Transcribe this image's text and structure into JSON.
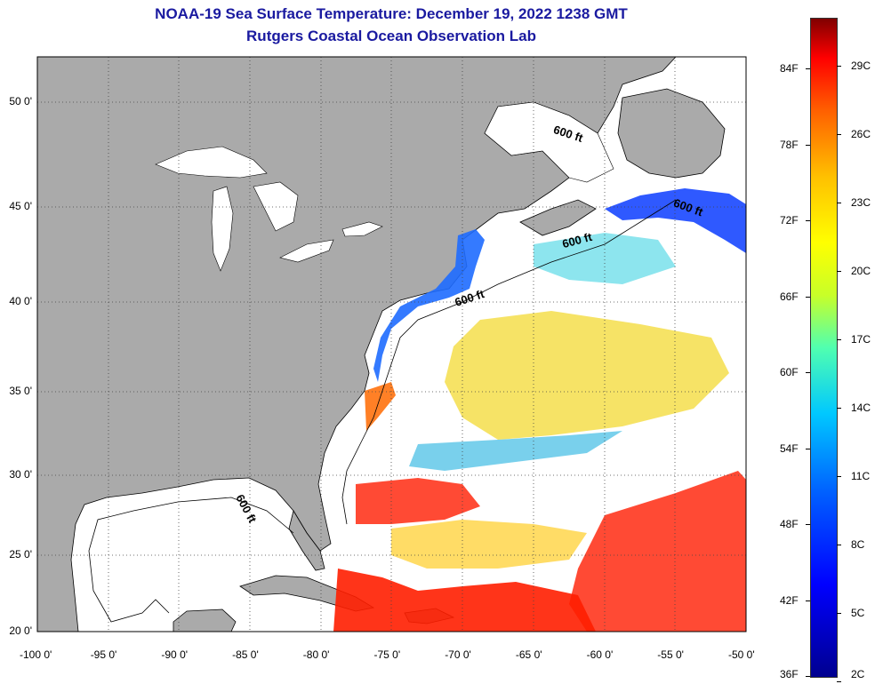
{
  "header": {
    "title": "NOAA-19 Sea Surface Temperature:  December 19, 2022 1238 GMT",
    "subtitle": "Rutgers Coastal Ocean Observation Lab"
  },
  "map": {
    "lon_range": [
      -100,
      -50
    ],
    "lat_range": [
      20,
      52.5
    ],
    "lat_labels": [
      "50 0'",
      "45 0'",
      "40 0'",
      "35 0'",
      "30 0'",
      "25 0'",
      "20 0'"
    ],
    "lat_values": [
      50,
      45,
      40,
      35,
      30,
      25,
      20
    ],
    "lon_labels": [
      "-100 0'",
      "-95 0'",
      "-90 0'",
      "-85 0'",
      "-80 0'",
      "-75 0'",
      "-70 0'",
      "-65 0'",
      "-60 0'",
      "-55 0'",
      "-50 0'"
    ],
    "lon_values": [
      -100,
      -95,
      -90,
      -85,
      -80,
      -75,
      -70,
      -65,
      -60,
      -55,
      -50
    ],
    "depth_contour_label": "600 ft",
    "colors": {
      "land": "#aaaaaa",
      "ocean_no_data": "#ffffff",
      "grid": "#555555"
    }
  },
  "colorbar": {
    "fahrenheit_labels": [
      "84F",
      "78F",
      "72F",
      "66F",
      "60F",
      "54F",
      "48F",
      "42F",
      "36F"
    ],
    "fahrenheit_values": [
      84,
      78,
      72,
      66,
      60,
      54,
      48,
      42,
      36
    ],
    "celsius_labels": [
      "29C",
      "26C",
      "23C",
      "20C",
      "17C",
      "14C",
      "11C",
      "8C",
      "5C",
      "2C"
    ],
    "celsius_values": [
      29,
      26,
      23,
      20,
      17,
      14,
      11,
      8,
      5,
      2
    ]
  }
}
